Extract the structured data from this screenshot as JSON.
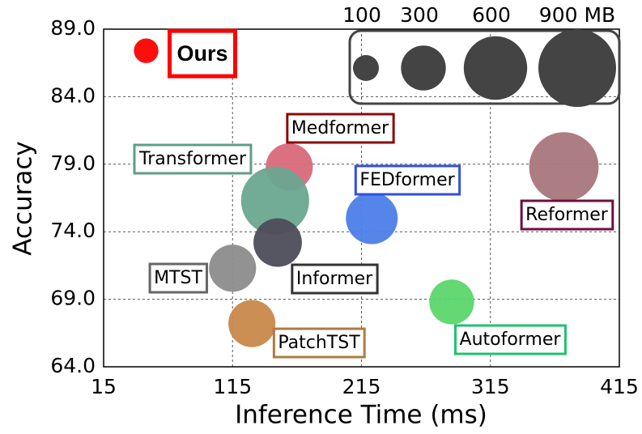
{
  "chart_data": {
    "type": "bubble",
    "xlabel": "Inference Time (ms)",
    "ylabel": "Accuracy",
    "xlim": [
      15,
      415
    ],
    "ylim": [
      64,
      89
    ],
    "xticks": [
      15,
      115,
      215,
      315,
      415
    ],
    "yticks": [
      {
        "value": 64,
        "label": "64.0"
      },
      {
        "value": 69,
        "label": "69.0"
      },
      {
        "value": 74,
        "label": "74.0"
      },
      {
        "value": 79,
        "label": "79.0"
      },
      {
        "value": 84,
        "label": "84.0"
      },
      {
        "value": 89,
        "label": "89.0"
      }
    ],
    "grid": true,
    "size_legend": [
      {
        "value": 100,
        "label": "100"
      },
      {
        "value": 300,
        "label": "300"
      },
      {
        "value": 600,
        "label": "600"
      },
      {
        "value": 900,
        "label": "900 MB"
      }
    ],
    "legend_color": "#444444",
    "series": [
      {
        "name": "Ours",
        "color": "#ff0000",
        "label_color": "#ff0000",
        "x": [
          48
        ],
        "values": [
          87.4
        ],
        "sizes": [
          90
        ]
      },
      {
        "name": "Medformer",
        "color": "#d9687a",
        "label_color": "#8b0a0a",
        "x": [
          159
        ],
        "values": [
          78.8
        ],
        "sizes": [
          330
        ]
      },
      {
        "name": "Transformer",
        "color": "#6aa690",
        "label_color": "#5e9e8a",
        "x": [
          148
        ],
        "values": [
          76.3
        ],
        "sizes": [
          690
        ]
      },
      {
        "name": "FEDformer",
        "color": "#4d7ee8",
        "label_color": "#2f50e0",
        "x": [
          223
        ],
        "values": [
          75.0
        ],
        "sizes": [
          400
        ]
      },
      {
        "name": "Reformer",
        "color": "#a9767d",
        "label_color": "#6b1040",
        "x": [
          372
        ],
        "values": [
          78.8
        ],
        "sizes": [
          720
        ]
      },
      {
        "name": "Informer",
        "color": "#4d4d5a",
        "label_color": "#333333",
        "x": [
          150
        ],
        "values": [
          73.2
        ],
        "sizes": [
          350
        ]
      },
      {
        "name": "MTST",
        "color": "#8c8c8c",
        "label_color": "#666666",
        "x": [
          115
        ],
        "values": [
          71.3
        ],
        "sizes": [
          330
        ]
      },
      {
        "name": "PatchTST",
        "color": "#c8884a",
        "label_color": "#b07a40",
        "x": [
          130
        ],
        "values": [
          67.2
        ],
        "sizes": [
          330
        ]
      },
      {
        "name": "Autoformer",
        "color": "#5bd66b",
        "label_color": "#22c070",
        "x": [
          285
        ],
        "values": [
          68.8
        ],
        "sizes": [
          300
        ]
      }
    ]
  }
}
